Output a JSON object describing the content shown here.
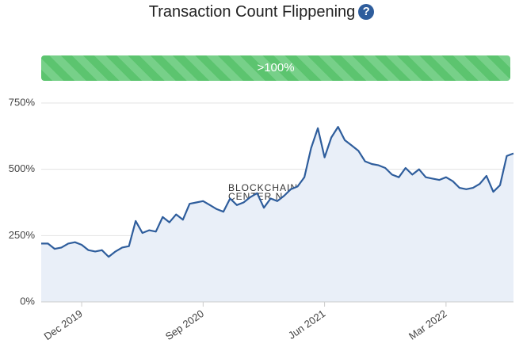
{
  "title": "Transaction Count Flippening",
  "help_icon": "?",
  "progress_bar": {
    "label": ">100%"
  },
  "chart_data": {
    "type": "area",
    "watermark": [
      "BLOCKCHAIN",
      "CENTER.N"
    ],
    "categories": [
      null,
      null,
      null,
      null,
      null,
      null,
      "Dec 2019",
      null,
      null,
      null,
      null,
      null,
      null,
      null,
      null,
      null,
      null,
      null,
      null,
      null,
      null,
      null,
      null,
      null,
      "Sep 2020",
      null,
      null,
      null,
      null,
      null,
      null,
      null,
      null,
      null,
      null,
      null,
      null,
      null,
      null,
      null,
      null,
      null,
      "Jun 2021",
      null,
      null,
      null,
      null,
      null,
      null,
      null,
      null,
      null,
      null,
      null,
      null,
      null,
      null,
      null,
      null,
      null,
      "Mar 2022",
      null,
      null,
      null,
      null,
      null,
      null,
      null,
      null,
      null,
      null
    ],
    "series": [
      {
        "color": "#2e5d9c",
        "fill": "#e9eff8",
        "values": [
          220,
          220,
          200,
          205,
          220,
          225,
          215,
          195,
          190,
          195,
          170,
          190,
          205,
          210,
          305,
          260,
          270,
          265,
          320,
          300,
          330,
          310,
          370,
          375,
          380,
          365,
          350,
          340,
          390,
          365,
          375,
          395,
          410,
          355,
          390,
          380,
          400,
          425,
          435,
          470,
          580,
          655,
          545,
          620,
          660,
          610,
          590,
          570,
          530,
          520,
          515,
          505,
          480,
          470,
          505,
          480,
          500,
          470,
          465,
          460,
          470,
          455,
          430,
          425,
          430,
          445,
          475,
          415,
          440,
          550,
          560
        ]
      }
    ],
    "ylim": [
      0,
      750
    ],
    "yticks": [
      {
        "value": 0,
        "label": "0%"
      },
      {
        "value": 250,
        "label": "250%"
      },
      {
        "value": 500,
        "label": "500%"
      },
      {
        "value": 750,
        "label": "750%"
      }
    ],
    "grid": true
  }
}
